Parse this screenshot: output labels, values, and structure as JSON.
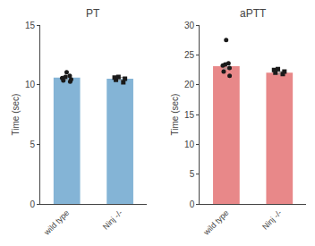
{
  "chart_data": [
    {
      "type": "bar",
      "title": "PT",
      "ylabel": "Time (sec)",
      "categories": [
        "wild type",
        "Ninj -/-"
      ],
      "values": [
        10.6,
        10.5
      ],
      "error": [
        0.18,
        0.1
      ],
      "points": [
        {
          "category": "wild type",
          "marker": "circle",
          "color": "#1a1a1a",
          "values": [
            10.25,
            10.45,
            10.55,
            10.65,
            10.75,
            11.05,
            10.35
          ]
        },
        {
          "category": "Ninj -/-",
          "marker": "square",
          "color": "#1a1a1a",
          "values": [
            10.2,
            10.4,
            10.5,
            10.6,
            10.65
          ]
        }
      ],
      "ylim": [
        0,
        15
      ],
      "yticks": [
        0,
        5,
        10,
        15
      ],
      "grid": false
    },
    {
      "type": "bar",
      "title": "aPTT",
      "ylabel": "Time (sec)",
      "categories": [
        "wild type",
        "Ninj -/-"
      ],
      "values": [
        23.1,
        22.0
      ],
      "error": [
        0.45,
        0.22
      ],
      "points": [
        {
          "category": "wild type",
          "marker": "circle",
          "color": "#1a1a1a",
          "values": [
            21.5,
            22.2,
            22.8,
            23.2,
            23.4,
            23.6,
            27.5
          ]
        },
        {
          "category": "Ninj -/-",
          "marker": "square",
          "color": "#1a1a1a",
          "values": [
            21.8,
            22.0,
            22.2,
            22.45,
            22.6
          ]
        }
      ],
      "ylim": [
        0,
        30
      ],
      "yticks": [
        0,
        5,
        10,
        15,
        20,
        25,
        30
      ],
      "grid": false
    }
  ]
}
